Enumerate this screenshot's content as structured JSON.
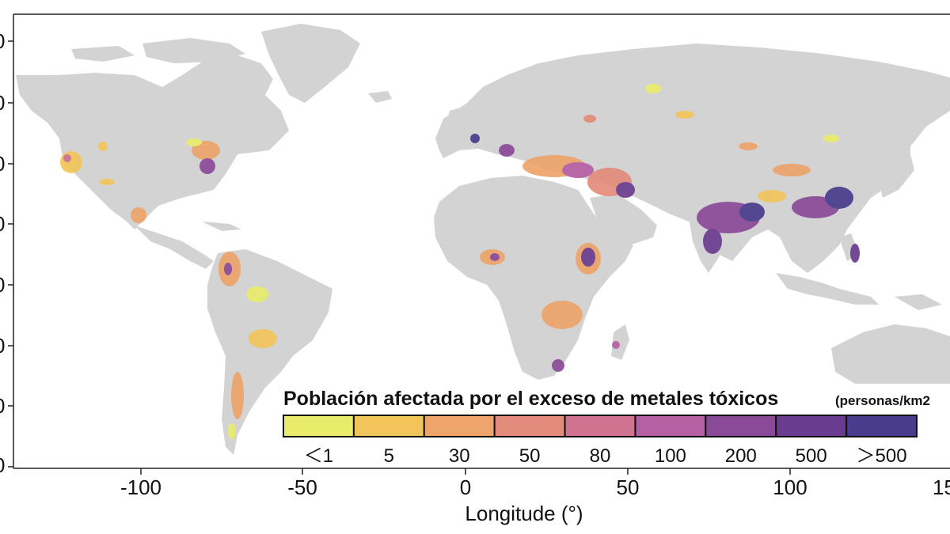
{
  "map": {
    "x_axis": {
      "title": "Longitude (°)",
      "ticks": [
        "-100",
        "-50",
        "0",
        "50",
        "100",
        "15"
      ]
    },
    "y_axis": {
      "partial_tick_fragments": [
        "0",
        "0",
        "0",
        "0",
        "0",
        "0",
        "0",
        "0"
      ]
    }
  },
  "legend": {
    "title": "Población afectada por el exceso de metales tóxicos",
    "unit": "(personas/km2",
    "bins": [
      {
        "label": "＜1",
        "color": "#e9ec6a"
      },
      {
        "label": "5",
        "color": "#f2c55a"
      },
      {
        "label": "30",
        "color": "#eea46a"
      },
      {
        "label": "50",
        "color": "#e38c7c"
      },
      {
        "label": "80",
        "color": "#cf7390"
      },
      {
        "label": "100",
        "color": "#b660a4"
      },
      {
        "label": "200",
        "color": "#8b4a98"
      },
      {
        "label": "500",
        "color": "#6a3c8f"
      },
      {
        "label": "＞500",
        "color": "#4a3c8c"
      }
    ]
  },
  "colors": {
    "land": "#d3d3d3",
    "ocean": "#ffffff",
    "frame": "#222222"
  }
}
